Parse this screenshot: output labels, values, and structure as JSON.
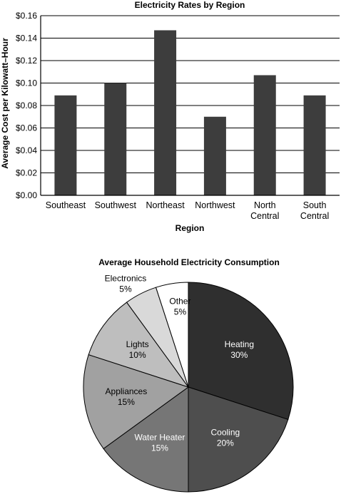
{
  "chart_data": [
    {
      "type": "bar",
      "title": "Electricity Rates by Region",
      "xlabel": "Region",
      "ylabel": "Average Cost per Kilowatt–Hour",
      "categories": [
        "Southeast",
        "Southwest",
        "Northeast",
        "Northwest",
        "North Central",
        "South Central"
      ],
      "values": [
        0.089,
        0.1,
        0.147,
        0.07,
        0.107,
        0.089
      ],
      "ylim": [
        0,
        0.16
      ],
      "yticks": [
        "$0.00",
        "$0.02",
        "$0.04",
        "$0.06",
        "$0.08",
        "$0.10",
        "$0.12",
        "$0.14",
        "$0.16"
      ],
      "grid": true,
      "bar_color": "#3d3d3d"
    },
    {
      "type": "pie",
      "title": "Average Household Electricity Consumption",
      "slices": [
        {
          "label": "Heating",
          "value": 30,
          "value_label": "30%",
          "color": "#2f2f2f",
          "text_color": "#ffffff"
        },
        {
          "label": "Cooling",
          "value": 20,
          "value_label": "20%",
          "color": "#4e4e4e",
          "text_color": "#ffffff"
        },
        {
          "label": "Water Heater",
          "value": 15,
          "value_label": "15%",
          "color": "#767676",
          "text_color": "#ffffff"
        },
        {
          "label": "Appliances",
          "value": 15,
          "value_label": "15%",
          "color": "#a1a1a1",
          "text_color": "#000000"
        },
        {
          "label": "Lights",
          "value": 10,
          "value_label": "10%",
          "color": "#bebebe",
          "text_color": "#000000"
        },
        {
          "label": "Electronics",
          "value": 5,
          "value_label": "5%",
          "color": "#d9d9d9",
          "text_color": "#000000"
        },
        {
          "label": "Other",
          "value": 5,
          "value_label": "5%",
          "color": "#ffffff",
          "text_color": "#000000"
        }
      ]
    }
  ]
}
